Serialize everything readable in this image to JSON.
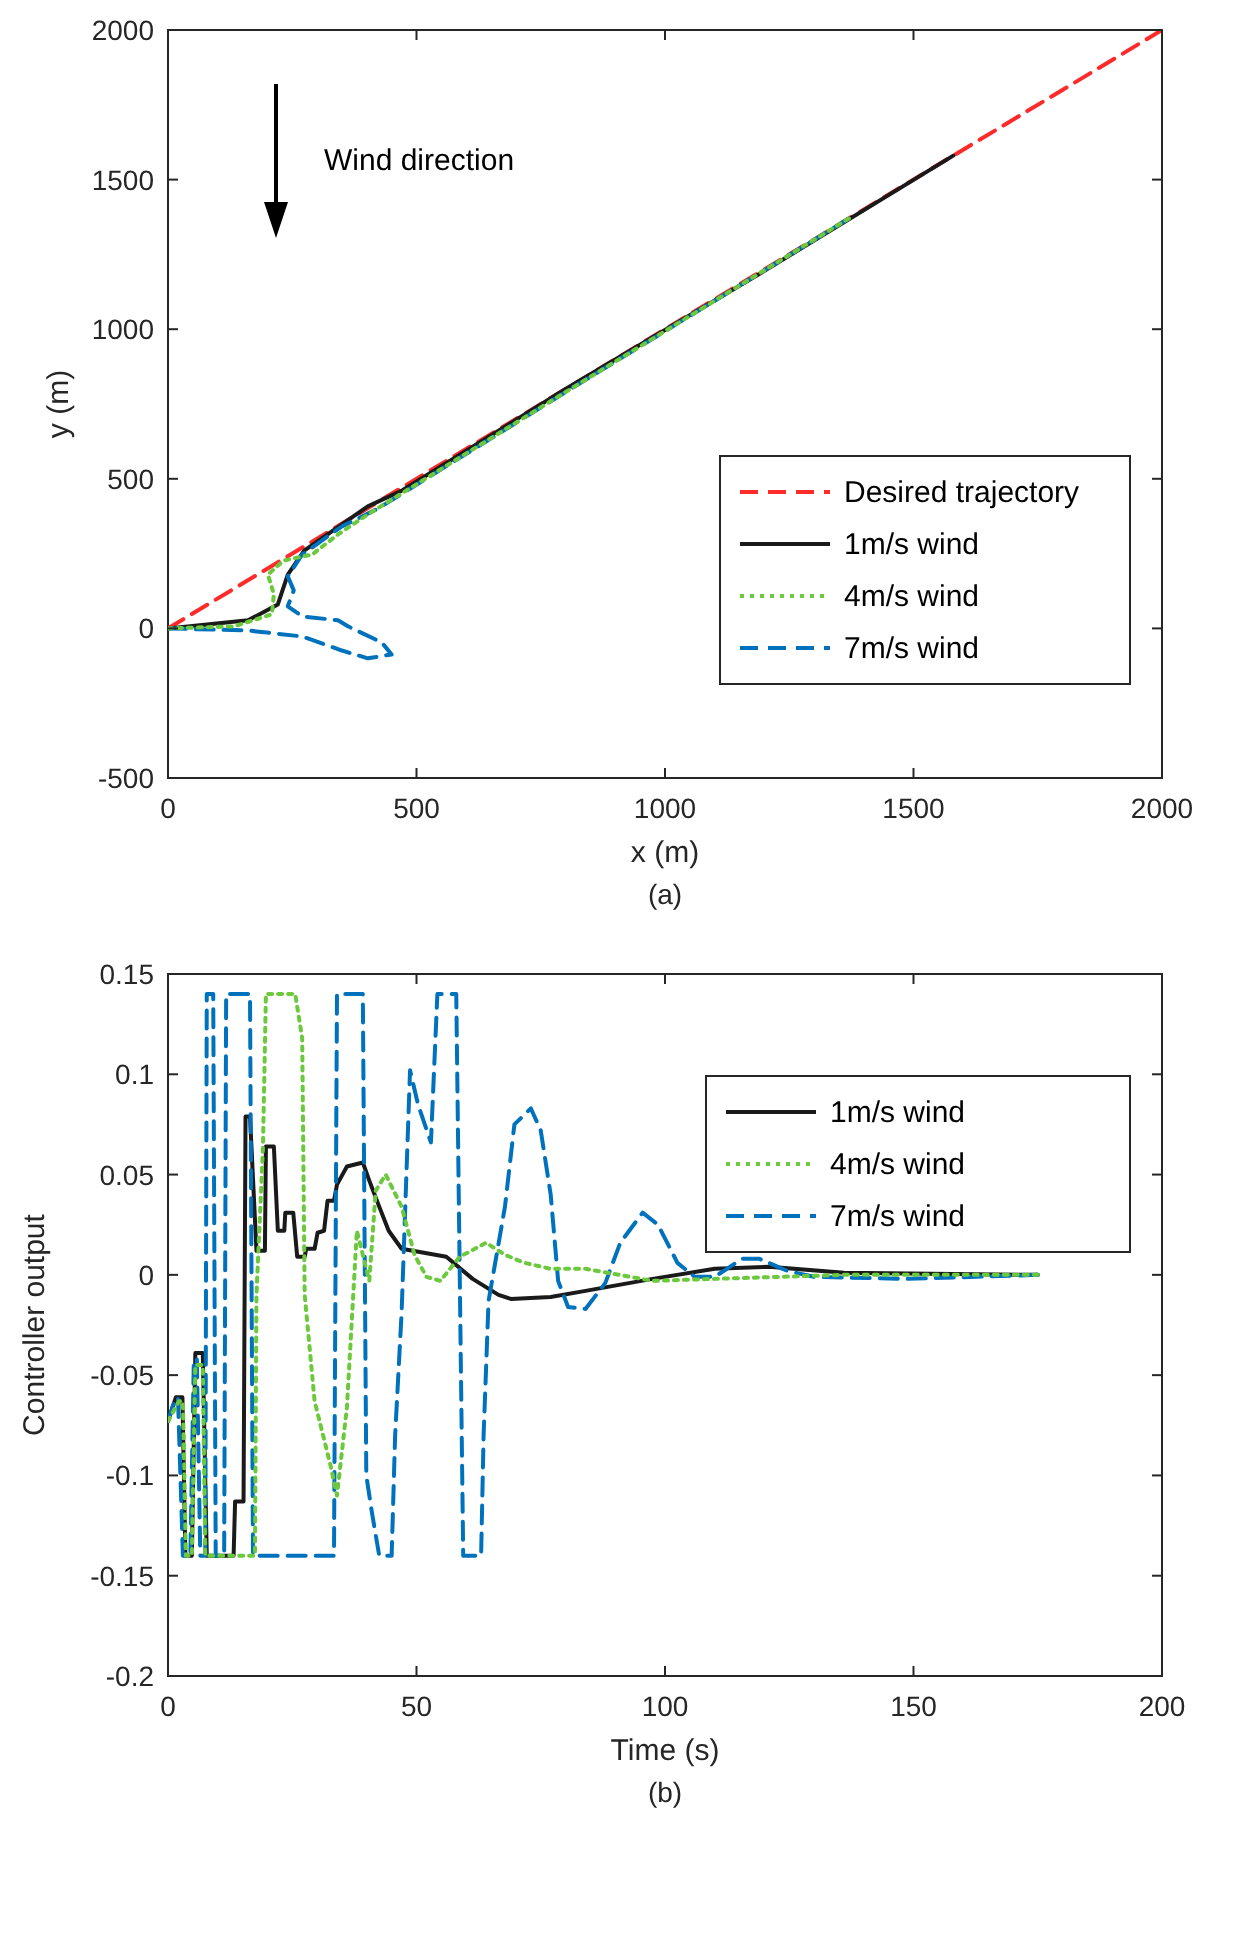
{
  "chart_data": [
    {
      "type": "line",
      "xlabel": "x (m)",
      "ylabel": "y (m)",
      "annotations": [
        "(a)",
        "Wind direction"
      ],
      "xlim": [
        0,
        2000
      ],
      "ylim": [
        -500,
        2000
      ],
      "xticks": [
        0,
        500,
        1000,
        1500,
        2000
      ],
      "yticks": [
        -500,
        0,
        500,
        1000,
        1500,
        2000
      ],
      "legend": "bottom right",
      "series": [
        {
          "name": "Desired trajectory",
          "color": "#ff2a2a",
          "line_style": "dashed",
          "x": [
            0,
            2000
          ],
          "values": [
            0,
            2000
          ]
        },
        {
          "name": "1m/s wind",
          "color": "#1a1a1a",
          "line_style": "solid",
          "x": [
            0,
            161,
            221,
            241,
            274,
            350,
            402,
            471,
            800,
            1200,
            1580
          ],
          "values": [
            0,
            27,
            80,
            180,
            260,
            348,
            408,
            461,
            800,
            1195,
            1580
          ]
        },
        {
          "name": "4m/s wind",
          "color": "#6cc83c",
          "line_style": "dotted",
          "x": [
            0,
            133,
            209,
            213,
            201,
            233,
            290,
            342,
            402,
            800,
            1370
          ],
          "values": [
            0,
            7,
            47,
            114,
            180,
            227,
            247,
            314,
            381,
            790,
            1370
          ]
        },
        {
          "name": "7m/s wind",
          "color": "#0072bd",
          "line_style": "dashed",
          "x": [
            0,
            161,
            270,
            350,
            402,
            450,
            430,
            362,
            342,
            270,
            241,
            253,
            241,
            270,
            350,
            422,
            800,
            1370
          ],
          "values": [
            0,
            -7,
            -27,
            -74,
            -100,
            -87,
            -47,
            7,
            27,
            40,
            74,
            127,
            174,
            247,
            341,
            400,
            790,
            1370
          ]
        }
      ]
    },
    {
      "type": "line",
      "xlabel": "Time (s)",
      "ylabel": "Controller output",
      "annotations": [
        "(b)"
      ],
      "xlim": [
        0,
        200
      ],
      "ylim": [
        -0.2,
        0.15
      ],
      "xticks": [
        0,
        50,
        100,
        150,
        200
      ],
      "yticks": [
        -0.2,
        -0.15,
        -0.1,
        -0.05,
        0,
        0.05,
        0.1,
        0.15
      ],
      "legend": "top right",
      "series": [
        {
          "name": "1m/s wind",
          "color": "#1a1a1a",
          "line_style": "solid",
          "x": [
            0,
            1.6,
            2.9,
            3.5,
            4.8,
            5.5,
            7.0,
            7.8,
            13.2,
            13.5,
            15.2,
            15.6,
            16.5,
            17.8,
            19.5,
            19.7,
            21.3,
            22.1,
            23.4,
            23.6,
            25.2,
            26,
            27.5,
            27.8,
            29.5,
            30.1,
            31.4,
            32.1,
            33.4,
            34,
            36,
            39.2,
            40.5,
            42.5,
            44.4,
            47,
            56,
            61.3,
            66.5,
            69,
            77,
            84,
            97.5,
            110,
            121,
            136,
            175
          ],
          "values": [
            -0.073,
            -0.061,
            -0.061,
            -0.14,
            -0.14,
            -0.039,
            -0.039,
            -0.14,
            -0.14,
            -0.113,
            -0.113,
            0.079,
            0.079,
            0.012,
            0.012,
            0.064,
            0.064,
            0.022,
            0.022,
            0.031,
            0.031,
            0.009,
            0.009,
            0.013,
            0.013,
            0.021,
            0.022,
            0.037,
            0.037,
            0.045,
            0.054,
            0.056,
            0.047,
            0.034,
            0.022,
            0.013,
            0.009,
            -0.002,
            -0.01,
            -0.012,
            -0.011,
            -0.008,
            -0.002,
            0.003,
            0.004,
            0.001,
            0
          ]
        },
        {
          "name": "4m/s wind",
          "color": "#6cc83c",
          "line_style": "dotted",
          "x": [
            0,
            2.2,
            3,
            3.6,
            4.8,
            5.5,
            7,
            7.5,
            17.5,
            17.8,
            19.1,
            19.7,
            25.6,
            27,
            27.5,
            29.5,
            32.7,
            34,
            36,
            38,
            40.5,
            41.8,
            43.8,
            47,
            49.6,
            52,
            54.8,
            58.7,
            64,
            67.8,
            71.7,
            77,
            84,
            97.5,
            110,
            136,
            175
          ],
          "values": [
            -0.073,
            -0.063,
            -0.063,
            -0.14,
            -0.14,
            -0.045,
            -0.045,
            -0.14,
            -0.14,
            -0.01,
            0.063,
            0.14,
            0.14,
            0.118,
            -0.01,
            -0.063,
            -0.095,
            -0.11,
            -0.066,
            0.022,
            -0.003,
            0.042,
            0.05,
            0.034,
            0.01,
            -0.001,
            -0.003,
            0.009,
            0.016,
            0.01,
            0.006,
            0.003,
            0.003,
            -0.003,
            -0.002,
            0,
            0
          ]
        },
        {
          "name": "7m/s wind",
          "color": "#0072bd",
          "line_style": "dashed",
          "x": [
            0,
            1,
            2,
            3,
            4.5,
            5.2,
            5.8,
            6.5,
            7.5,
            7.8,
            9.1,
            9.6,
            11.3,
            11.7,
            16.5,
            17.1,
            33.4,
            34,
            39.2,
            39.9,
            41,
            42.5,
            45,
            45.7,
            47,
            48.7,
            50.3,
            52.9,
            54.2,
            58,
            59.4,
            60,
            63,
            63.5,
            64.5,
            67.8,
            69.7,
            73,
            75,
            77,
            78.5,
            80.5,
            84,
            88,
            91,
            95.5,
            98.6,
            102.5,
            106,
            110,
            115.5,
            119,
            124.6,
            130,
            149,
            175
          ],
          "values": [
            -0.073,
            -0.065,
            -0.061,
            -0.14,
            -0.14,
            -0.042,
            -0.042,
            -0.14,
            -0.14,
            0.14,
            0.14,
            -0.14,
            -0.14,
            0.14,
            0.14,
            -0.14,
            -0.14,
            0.14,
            0.14,
            -0.1,
            -0.118,
            -0.14,
            -0.14,
            -0.08,
            -0.019,
            0.102,
            0.085,
            0.066,
            0.14,
            0.14,
            -0.14,
            -0.14,
            -0.14,
            -0.08,
            -0.013,
            0.034,
            0.075,
            0.083,
            0.072,
            0.04,
            -0.003,
            -0.016,
            -0.017,
            -0.004,
            0.016,
            0.031,
            0.025,
            0.006,
            -0.001,
            -0.001,
            0.008,
            0.008,
            0.002,
            -0.001,
            -0.002,
            0
          ]
        }
      ]
    }
  ]
}
